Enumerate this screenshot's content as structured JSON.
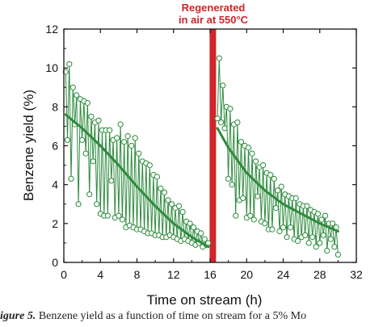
{
  "chart_data": {
    "type": "scatter",
    "xlabel": "Time on stream (h)",
    "ylabel": "Benzene yield (%)",
    "xlim": [
      0,
      32
    ],
    "ylim": [
      0,
      12
    ],
    "xticks": [
      "0",
      "4",
      "8",
      "12",
      "16",
      "20",
      "24",
      "28",
      "32"
    ],
    "yticks": [
      "0",
      "2",
      "4",
      "6",
      "8",
      "10",
      "12"
    ],
    "annotation": {
      "line1": "Regenerated",
      "line2": "in air at 550°C",
      "x": 16.3
    },
    "colors": {
      "series": "#2e8b3e",
      "marker_stroke": "#2a8a3a",
      "annotation": "#d0252a"
    },
    "series": [
      {
        "segment": "before regeneration",
        "x": [
          0.2,
          0.4,
          0.6,
          0.8,
          1.0,
          1.2,
          1.4,
          1.6,
          1.8,
          2.0,
          2.2,
          2.4,
          2.6,
          2.8,
          3.0,
          3.2,
          3.4,
          3.6,
          3.8,
          4.0,
          4.2,
          4.4,
          4.6,
          4.8,
          5.0,
          5.2,
          5.4,
          5.6,
          5.8,
          6.0,
          6.2,
          6.4,
          6.6,
          6.8,
          7.0,
          7.2,
          7.4,
          7.6,
          7.8,
          8.0,
          8.2,
          8.4,
          8.6,
          8.8,
          9.0,
          9.2,
          9.4,
          9.6,
          9.8,
          10.0,
          10.2,
          10.4,
          10.6,
          10.8,
          11.0,
          11.2,
          11.4,
          11.6,
          11.8,
          12.0,
          12.2,
          12.4,
          12.6,
          12.8,
          13.0,
          13.2,
          13.4,
          13.6,
          13.8,
          14.0,
          14.2,
          14.4,
          14.6,
          14.8,
          15.0,
          15.2,
          15.4,
          15.6,
          15.8
        ],
        "y": [
          9.8,
          6.3,
          10.2,
          4.3,
          9.0,
          7.1,
          8.6,
          3.0,
          8.4,
          6.3,
          8.3,
          5.6,
          8.2,
          3.5,
          7.5,
          5.2,
          7.2,
          3.0,
          7.3,
          2.5,
          6.8,
          2.4,
          6.8,
          2.4,
          6.8,
          4.2,
          6.3,
          2.3,
          6.4,
          2.4,
          7.1,
          2.2,
          6.2,
          1.8,
          6.5,
          1.9,
          6.0,
          1.8,
          6.4,
          1.7,
          5.6,
          1.7,
          5.2,
          1.6,
          5.1,
          1.5,
          5.0,
          1.5,
          4.5,
          1.4,
          4.4,
          1.4,
          3.8,
          1.3,
          3.6,
          1.3,
          3.2,
          1.4,
          3.0,
          1.3,
          2.8,
          1.2,
          2.9,
          1.1,
          2.6,
          1.2,
          2.1,
          1.1,
          2.0,
          1.0,
          1.8,
          0.9,
          1.6,
          1.0,
          1.5,
          0.8,
          1.2,
          0.9,
          1.0
        ]
      },
      {
        "segment": "after regeneration",
        "x": [
          16.8,
          17.0,
          17.2,
          17.4,
          17.6,
          17.8,
          18.0,
          18.2,
          18.4,
          18.6,
          18.8,
          19.0,
          19.2,
          19.4,
          19.6,
          19.8,
          20.0,
          20.2,
          20.4,
          20.6,
          20.8,
          21.0,
          21.2,
          21.4,
          21.6,
          21.8,
          22.0,
          22.2,
          22.4,
          22.6,
          22.8,
          23.0,
          23.2,
          23.4,
          23.6,
          23.8,
          24.0,
          24.2,
          24.4,
          24.6,
          24.8,
          25.0,
          25.2,
          25.4,
          25.6,
          25.8,
          26.0,
          26.2,
          26.4,
          26.6,
          26.8,
          27.0,
          27.2,
          27.4,
          27.6,
          27.8,
          28.0,
          28.2,
          28.4,
          28.6,
          28.8,
          29.0,
          29.2,
          29.4,
          29.6,
          29.8,
          30.0
        ],
        "y": [
          7.4,
          10.5,
          7.2,
          9.1,
          6.9,
          8.0,
          4.3,
          7.9,
          4.0,
          7.1,
          2.4,
          7.2,
          3.2,
          6.2,
          3.3,
          6.0,
          2.3,
          5.9,
          2.4,
          5.6,
          2.2,
          5.2,
          3.4,
          4.9,
          2.1,
          5.0,
          2.0,
          4.6,
          1.7,
          4.5,
          1.7,
          4.3,
          2.8,
          3.7,
          1.6,
          3.9,
          1.8,
          3.5,
          1.3,
          3.4,
          1.8,
          3.3,
          1.2,
          3.3,
          1.1,
          3.0,
          1.3,
          2.9,
          1.4,
          2.9,
          1.0,
          2.7,
          1.3,
          2.6,
          0.8,
          2.5,
          1.0,
          2.2,
          1.4,
          2.4,
          0.6,
          2.0,
          1.2,
          2.0,
          0.8,
          1.8,
          0.4
        ]
      }
    ],
    "trend": [
      {
        "x": [
          0.2,
          2,
          4,
          6,
          8,
          10,
          12,
          14,
          15.8
        ],
        "y": [
          7.6,
          6.9,
          6.0,
          5.0,
          3.9,
          2.9,
          2.0,
          1.3,
          0.8
        ]
      },
      {
        "x": [
          16.8,
          18,
          20,
          22,
          24,
          26,
          28,
          30
        ],
        "y": [
          6.9,
          5.9,
          4.6,
          3.7,
          3.0,
          2.5,
          2.0,
          1.6
        ]
      }
    ]
  },
  "caption": {
    "label": "igure 5.",
    "text": " Benzene yield as a function of time on stream for a 5% Mo"
  }
}
